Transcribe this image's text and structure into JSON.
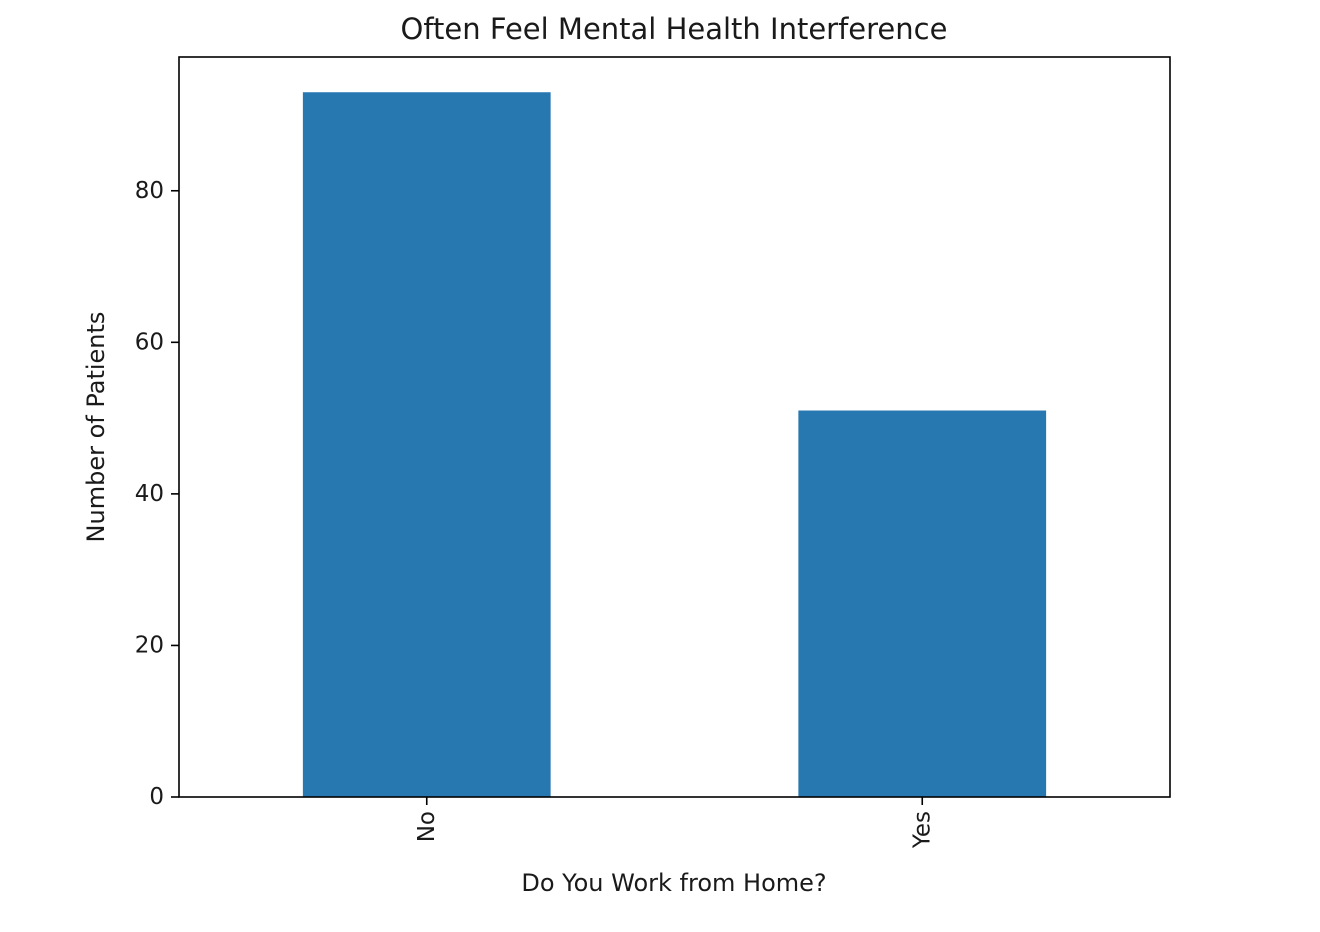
{
  "chart_data": {
    "type": "bar",
    "title": "Often Feel Mental Health Interference",
    "xlabel": "Do You Work from Home?",
    "ylabel": "Number of Patients",
    "categories": [
      "No",
      "Yes"
    ],
    "values": [
      93,
      51
    ],
    "ylim": [
      0,
      97.65
    ],
    "yticks": [
      0,
      20,
      40,
      60,
      80
    ],
    "bar_color": "#2777b1",
    "grid": false,
    "legend": "none"
  }
}
